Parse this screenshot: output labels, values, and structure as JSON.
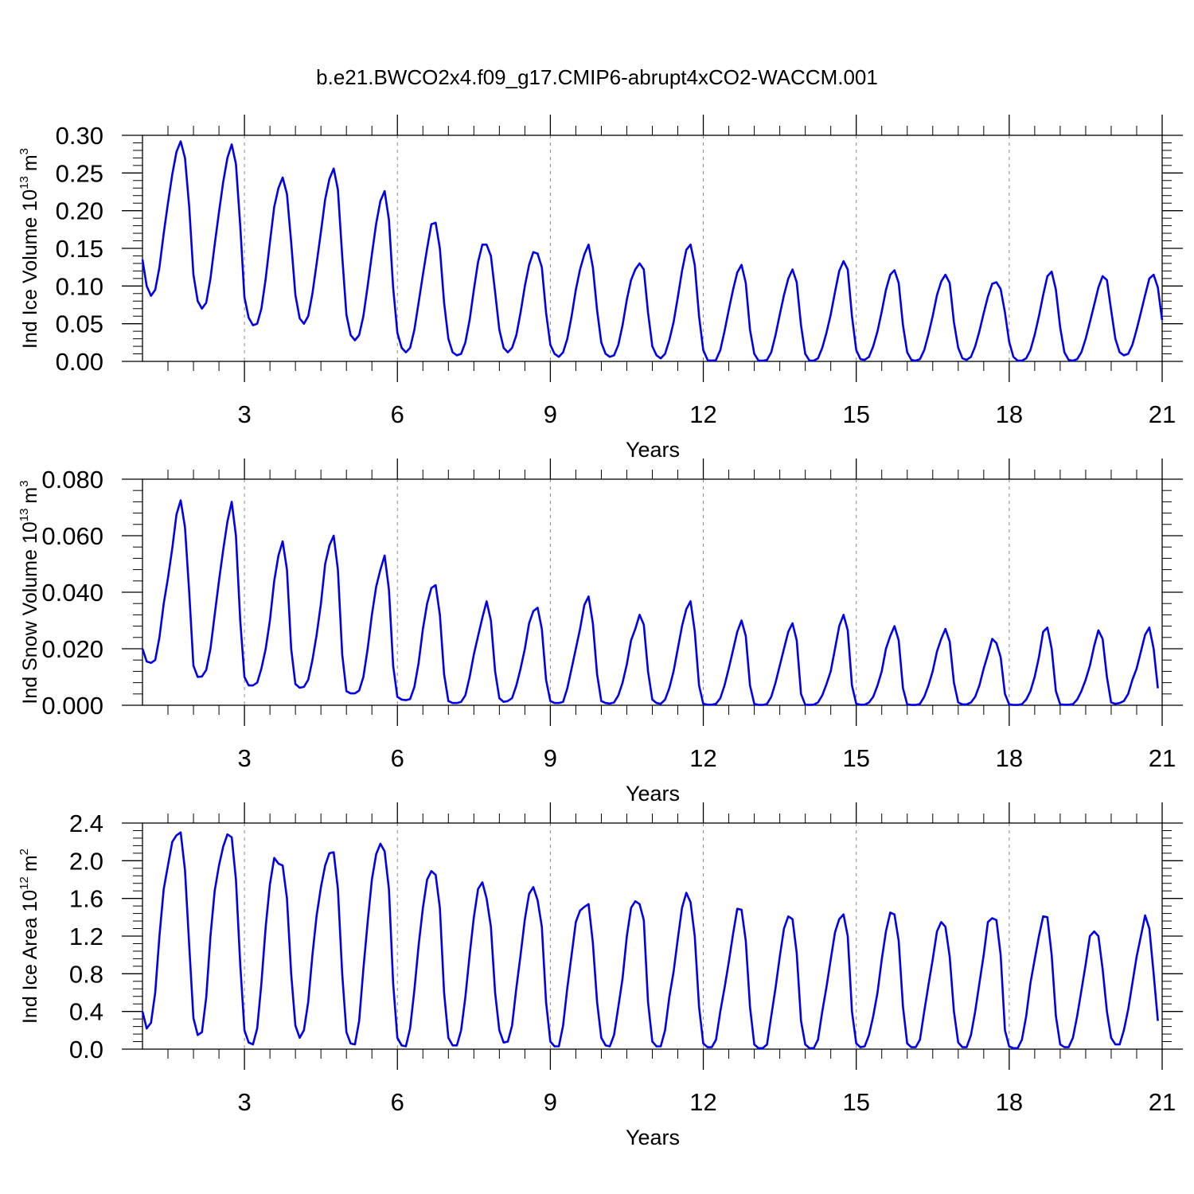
{
  "title": "b.e21.BWCO2x4.f09_g17.CMIP6-abrupt4xCO2-WACCM.001",
  "chart_data": [
    {
      "type": "line",
      "xlabel": "Years",
      "ylabel": "Ind Ice Volume 10",
      "ylabel_sup": "13",
      "ylabel_unit": "m",
      "ylabel_unit_sup": "3",
      "ylim": [
        0,
        0.3
      ],
      "yticks": [
        "0.00",
        "0.05",
        "0.10",
        "0.15",
        "0.20",
        "0.25",
        "0.30"
      ],
      "xlim": [
        1,
        21
      ],
      "xticks": [
        "3",
        "6",
        "9",
        "12",
        "15",
        "18",
        "21"
      ],
      "series": [
        {
          "color": "#0000ee",
          "x_start": 1,
          "x_step": 0.08333,
          "values": [
            0.135,
            0.1,
            0.087,
            0.095,
            0.125,
            0.17,
            0.21,
            0.248,
            0.278,
            0.292,
            0.27,
            0.205,
            0.115,
            0.08,
            0.07,
            0.078,
            0.11,
            0.155,
            0.198,
            0.238,
            0.27,
            0.288,
            0.262,
            0.18,
            0.085,
            0.058,
            0.048,
            0.05,
            0.07,
            0.11,
            0.158,
            0.205,
            0.23,
            0.244,
            0.222,
            0.158,
            0.088,
            0.057,
            0.05,
            0.06,
            0.09,
            0.13,
            0.172,
            0.215,
            0.242,
            0.256,
            0.228,
            0.14,
            0.062,
            0.035,
            0.028,
            0.035,
            0.06,
            0.1,
            0.142,
            0.183,
            0.213,
            0.226,
            0.188,
            0.098,
            0.038,
            0.018,
            0.012,
            0.018,
            0.042,
            0.078,
            0.115,
            0.15,
            0.182,
            0.184,
            0.15,
            0.078,
            0.03,
            0.012,
            0.008,
            0.01,
            0.025,
            0.055,
            0.095,
            0.132,
            0.155,
            0.155,
            0.14,
            0.092,
            0.042,
            0.018,
            0.012,
            0.018,
            0.035,
            0.065,
            0.1,
            0.128,
            0.145,
            0.143,
            0.125,
            0.065,
            0.022,
            0.01,
            0.006,
            0.012,
            0.03,
            0.06,
            0.095,
            0.122,
            0.142,
            0.155,
            0.125,
            0.068,
            0.025,
            0.01,
            0.006,
            0.008,
            0.022,
            0.048,
            0.082,
            0.108,
            0.122,
            0.13,
            0.122,
            0.065,
            0.02,
            0.008,
            0.004,
            0.01,
            0.028,
            0.052,
            0.085,
            0.12,
            0.148,
            0.155,
            0.128,
            0.06,
            0.015,
            0.002,
            0.001,
            0.002,
            0.015,
            0.04,
            0.068,
            0.095,
            0.118,
            0.128,
            0.104,
            0.042,
            0.01,
            0.001,
            0.001,
            0.002,
            0.012,
            0.035,
            0.062,
            0.088,
            0.11,
            0.122,
            0.105,
            0.048,
            0.01,
            0.001,
            0.001,
            0.004,
            0.018,
            0.038,
            0.062,
            0.092,
            0.12,
            0.133,
            0.122,
            0.06,
            0.015,
            0.003,
            0.002,
            0.006,
            0.02,
            0.04,
            0.066,
            0.095,
            0.115,
            0.121,
            0.104,
            0.048,
            0.012,
            0.002,
            0.001,
            0.003,
            0.015,
            0.036,
            0.06,
            0.088,
            0.106,
            0.115,
            0.104,
            0.052,
            0.018,
            0.004,
            0.002,
            0.006,
            0.02,
            0.04,
            0.064,
            0.086,
            0.103,
            0.105,
            0.096,
            0.065,
            0.026,
            0.006,
            0.001,
            0.001,
            0.004,
            0.015,
            0.035,
            0.06,
            0.088,
            0.113,
            0.119,
            0.095,
            0.045,
            0.012,
            0.002,
            0.001,
            0.003,
            0.012,
            0.03,
            0.052,
            0.075,
            0.098,
            0.113,
            0.108,
            0.068,
            0.03,
            0.012,
            0.008,
            0.01,
            0.022,
            0.042,
            0.065,
            0.088,
            0.11,
            0.115,
            0.098,
            0.055
          ]
        }
      ]
    },
    {
      "type": "line",
      "xlabel": "Years",
      "ylabel": "Ind Snow Volume 10",
      "ylabel_sup": "13",
      "ylabel_unit": "m",
      "ylabel_unit_sup": "3",
      "ylim": [
        0,
        0.08
      ],
      "yticks": [
        "0.000",
        "0.020",
        "0.040",
        "0.060",
        "0.080"
      ],
      "xlim": [
        1,
        21
      ],
      "xticks": [
        "3",
        "6",
        "9",
        "12",
        "15",
        "18",
        "21"
      ],
      "series": [
        {
          "color": "#0000ee",
          "x_start": 1,
          "x_step": 0.08333,
          "values": [
            0.02,
            0.0155,
            0.015,
            0.016,
            0.024,
            0.036,
            0.045,
            0.0555,
            0.0675,
            0.0725,
            0.063,
            0.04,
            0.014,
            0.01,
            0.0102,
            0.0125,
            0.02,
            0.032,
            0.044,
            0.055,
            0.065,
            0.072,
            0.06,
            0.03,
            0.01,
            0.007,
            0.007,
            0.008,
            0.013,
            0.02,
            0.03,
            0.044,
            0.053,
            0.058,
            0.048,
            0.02,
            0.0075,
            0.0062,
            0.0065,
            0.009,
            0.016,
            0.025,
            0.036,
            0.05,
            0.0565,
            0.06,
            0.048,
            0.018,
            0.005,
            0.0042,
            0.0042,
            0.0052,
            0.01,
            0.02,
            0.032,
            0.042,
            0.048,
            0.053,
            0.041,
            0.014,
            0.003,
            0.002,
            0.0018,
            0.0022,
            0.0065,
            0.015,
            0.027,
            0.036,
            0.0415,
            0.0425,
            0.032,
            0.011,
            0.0015,
            0.0008,
            0.0008,
            0.0012,
            0.0035,
            0.01,
            0.018,
            0.0245,
            0.031,
            0.0368,
            0.03,
            0.012,
            0.0025,
            0.0012,
            0.0015,
            0.0025,
            0.007,
            0.013,
            0.02,
            0.029,
            0.0333,
            0.0345,
            0.027,
            0.009,
            0.0015,
            0.0008,
            0.0008,
            0.0012,
            0.006,
            0.013,
            0.02,
            0.027,
            0.0355,
            0.0385,
            0.029,
            0.011,
            0.0015,
            0.0008,
            0.0006,
            0.001,
            0.0035,
            0.008,
            0.0145,
            0.023,
            0.027,
            0.032,
            0.0285,
            0.012,
            0.002,
            0.0008,
            0.0005,
            0.002,
            0.006,
            0.012,
            0.02,
            0.028,
            0.034,
            0.0368,
            0.0262,
            0.007,
            0.0005,
            0.0002,
            0.0002,
            0.0005,
            0.0025,
            0.007,
            0.013,
            0.0195,
            0.026,
            0.03,
            0.0245,
            0.007,
            0.0005,
            0.0001,
            0.0001,
            0.0005,
            0.003,
            0.008,
            0.014,
            0.02,
            0.026,
            0.029,
            0.023,
            0.004,
            0.0002,
            0.0001,
            0.0002,
            0.001,
            0.0035,
            0.0075,
            0.012,
            0.02,
            0.028,
            0.032,
            0.0265,
            0.007,
            0.0005,
            0.0002,
            0.0002,
            0.001,
            0.003,
            0.007,
            0.012,
            0.02,
            0.0245,
            0.028,
            0.023,
            0.006,
            0.0003,
            0.0001,
            0.0001,
            0.0005,
            0.003,
            0.007,
            0.012,
            0.019,
            0.0235,
            0.027,
            0.0225,
            0.008,
            0.001,
            0.0003,
            0.0003,
            0.001,
            0.003,
            0.007,
            0.013,
            0.018,
            0.0235,
            0.022,
            0.017,
            0.004,
            0.0003,
            0.0001,
            0.0001,
            0.0004,
            0.002,
            0.005,
            0.01,
            0.017,
            0.026,
            0.0275,
            0.02,
            0.005,
            0.0003,
            0.0002,
            0.0002,
            0.0004,
            0.002,
            0.005,
            0.009,
            0.014,
            0.021,
            0.0265,
            0.0235,
            0.01,
            0.001,
            0.0005,
            0.0008,
            0.0015,
            0.004,
            0.009,
            0.013,
            0.019,
            0.025,
            0.0275,
            0.02,
            0.006
          ]
        }
      ]
    },
    {
      "type": "line",
      "xlabel": "Years",
      "ylabel": "Ind Ice Area 10",
      "ylabel_sup": "12",
      "ylabel_unit": "m",
      "ylabel_unit_sup": "2",
      "ylim": [
        0,
        2.4
      ],
      "yticks": [
        "0.0",
        "0.4",
        "0.8",
        "1.2",
        "1.6",
        "2.0",
        "2.4"
      ],
      "xlim": [
        1,
        21
      ],
      "xticks": [
        "3",
        "6",
        "9",
        "12",
        "15",
        "18",
        "21"
      ],
      "series": [
        {
          "color": "#0000ee",
          "x_start": 1,
          "x_step": 0.08333,
          "values": [
            0.4,
            0.22,
            0.28,
            0.6,
            1.2,
            1.7,
            1.95,
            2.2,
            2.27,
            2.3,
            1.9,
            1.1,
            0.33,
            0.15,
            0.18,
            0.55,
            1.2,
            1.68,
            1.95,
            2.15,
            2.28,
            2.25,
            1.8,
            0.9,
            0.2,
            0.07,
            0.05,
            0.22,
            0.7,
            1.3,
            1.75,
            2.03,
            1.97,
            1.95,
            1.6,
            0.8,
            0.25,
            0.12,
            0.2,
            0.5,
            1.0,
            1.42,
            1.72,
            1.95,
            2.08,
            2.09,
            1.7,
            0.8,
            0.18,
            0.06,
            0.05,
            0.3,
            0.85,
            1.35,
            1.8,
            2.07,
            2.18,
            2.1,
            1.7,
            0.7,
            0.12,
            0.04,
            0.03,
            0.22,
            0.63,
            1.1,
            1.5,
            1.8,
            1.89,
            1.85,
            1.5,
            0.6,
            0.12,
            0.04,
            0.04,
            0.2,
            0.55,
            1.0,
            1.4,
            1.7,
            1.77,
            1.6,
            1.3,
            0.6,
            0.2,
            0.07,
            0.08,
            0.25,
            0.65,
            1.0,
            1.38,
            1.65,
            1.72,
            1.58,
            1.3,
            0.5,
            0.08,
            0.03,
            0.03,
            0.25,
            0.65,
            1.0,
            1.35,
            1.47,
            1.51,
            1.54,
            1.13,
            0.5,
            0.12,
            0.04,
            0.03,
            0.15,
            0.45,
            0.75,
            1.2,
            1.5,
            1.57,
            1.54,
            1.37,
            0.5,
            0.08,
            0.03,
            0.03,
            0.2,
            0.55,
            0.82,
            1.17,
            1.5,
            1.66,
            1.56,
            1.2,
            0.45,
            0.06,
            0.02,
            0.02,
            0.1,
            0.4,
            0.65,
            0.92,
            1.22,
            1.49,
            1.48,
            1.15,
            0.45,
            0.05,
            0.01,
            0.01,
            0.05,
            0.35,
            0.65,
            0.98,
            1.28,
            1.41,
            1.38,
            1.02,
            0.3,
            0.05,
            0.01,
            0.01,
            0.1,
            0.4,
            0.66,
            0.95,
            1.24,
            1.38,
            1.43,
            1.2,
            0.4,
            0.06,
            0.02,
            0.03,
            0.15,
            0.35,
            0.6,
            0.95,
            1.25,
            1.45,
            1.43,
            1.15,
            0.45,
            0.06,
            0.02,
            0.02,
            0.1,
            0.4,
            0.68,
            0.95,
            1.25,
            1.35,
            1.3,
            0.98,
            0.4,
            0.07,
            0.02,
            0.02,
            0.15,
            0.4,
            0.7,
            1.0,
            1.35,
            1.39,
            1.37,
            1.0,
            0.2,
            0.03,
            0.01,
            0.01,
            0.1,
            0.35,
            0.7,
            0.95,
            1.2,
            1.41,
            1.4,
            1.0,
            0.35,
            0.05,
            0.02,
            0.02,
            0.12,
            0.35,
            0.62,
            0.9,
            1.2,
            1.25,
            1.2,
            0.85,
            0.4,
            0.12,
            0.05,
            0.05,
            0.2,
            0.42,
            0.7,
            0.98,
            1.2,
            1.42,
            1.28,
            0.8,
            0.3
          ]
        }
      ]
    }
  ]
}
